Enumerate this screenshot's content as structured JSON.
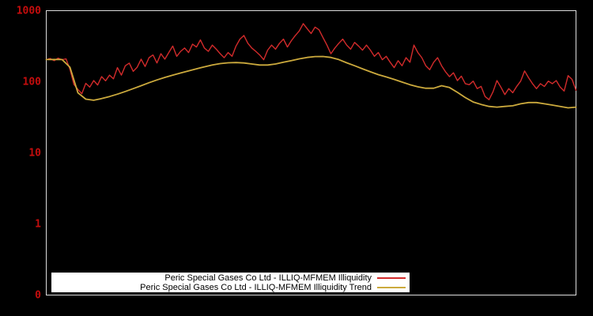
{
  "window": {
    "background": "#000000",
    "plot_border_color": "#dcdcdc",
    "tick_label_color": "#c40d0d"
  },
  "chart_data": {
    "type": "line",
    "title": "",
    "xlabel": "",
    "ylabel": "",
    "yscale": "log",
    "grid": false,
    "legend_position": "bottom-center-inside",
    "yticks": [
      {
        "label": "1000",
        "value": 1000
      },
      {
        "label": "100",
        "value": 100
      },
      {
        "label": "10",
        "value": 10
      },
      {
        "label": "1",
        "value": 1
      },
      {
        "label": "0",
        "value": 0.1
      }
    ],
    "series": [
      {
        "name": "Peric Special Gases Co Ltd - ILLIQ-MFMEM Illiquidity",
        "color": "#d22b2b",
        "stroke_width": 1.4,
        "values": [
          205,
          212,
          198,
          215,
          204,
          210,
          150,
          92,
          78,
          68,
          95,
          84,
          104,
          90,
          118,
          103,
          124,
          110,
          158,
          124,
          168,
          183,
          140,
          160,
          208,
          164,
          218,
          238,
          184,
          248,
          208,
          258,
          318,
          228,
          268,
          298,
          258,
          338,
          308,
          388,
          298,
          268,
          328,
          288,
          248,
          218,
          258,
          228,
          318,
          398,
          448,
          348,
          298,
          268,
          238,
          204,
          278,
          328,
          288,
          348,
          398,
          308,
          378,
          448,
          518,
          658,
          558,
          478,
          588,
          538,
          418,
          328,
          248,
          298,
          348,
          398,
          328,
          288,
          358,
          318,
          278,
          328,
          278,
          228,
          258,
          204,
          228,
          188,
          158,
          198,
          168,
          218,
          188,
          328,
          258,
          218,
          168,
          148,
          188,
          218,
          168,
          138,
          118,
          134,
          104,
          120,
          94,
          91,
          102,
          80,
          86,
          62,
          56,
          72,
          104,
          84,
          66,
          80,
          70,
          86,
          102,
          142,
          114,
          94,
          80,
          94,
          86,
          102,
          94,
          104,
          84,
          74,
          122,
          108,
          76
        ]
      },
      {
        "name": "Peric Special Gases Co Ltd - ILLIQ-MFMEM Illiquidity Trend",
        "color": "#ccaa3d",
        "stroke_width": 1.8,
        "values": [
          205,
          206,
          205,
          160,
          70,
          57,
          55,
          58,
          62,
          67,
          73,
          80,
          88,
          97,
          106,
          115,
          124,
          133,
          142,
          152,
          162,
          172,
          180,
          185,
          186,
          184,
          178,
          172,
          172,
          178,
          188,
          198,
          210,
          220,
          226,
          227,
          220,
          205,
          185,
          168,
          152,
          138,
          126,
          117,
          108,
          99,
          91,
          85,
          81,
          81,
          88,
          83,
          71,
          60,
          52,
          48,
          45,
          44,
          45,
          46,
          49,
          51,
          51,
          49,
          47,
          45,
          43,
          44
        ]
      }
    ]
  },
  "legend": {
    "background": "#ffffff",
    "text_color": "#000000"
  }
}
